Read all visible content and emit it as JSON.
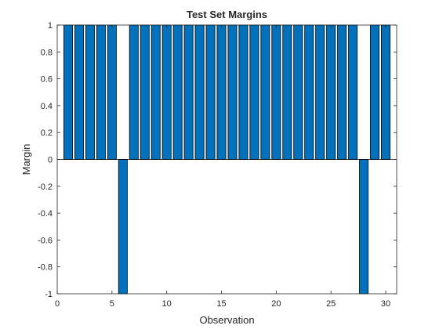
{
  "chart_data": {
    "type": "bar",
    "title": "Test Set Margins",
    "xlabel": "Observation",
    "ylabel": "Margin",
    "xlim": [
      0,
      31
    ],
    "ylim": [
      -1,
      1
    ],
    "xticks": [
      "0",
      "5",
      "10",
      "15",
      "20",
      "25",
      "30"
    ],
    "yticks": [
      "1",
      "0.8",
      "0.6",
      "0.4",
      "0.2",
      "0",
      "-0.2",
      "-0.4",
      "-0.6",
      "-0.8",
      "-1"
    ],
    "x": [
      1,
      2,
      3,
      4,
      5,
      6,
      7,
      8,
      9,
      10,
      11,
      12,
      13,
      14,
      15,
      16,
      17,
      18,
      19,
      20,
      21,
      22,
      23,
      24,
      25,
      26,
      27,
      28,
      29,
      30
    ],
    "values": [
      1,
      1,
      1,
      1,
      1,
      -1,
      1,
      1,
      1,
      1,
      1,
      1,
      1,
      1,
      1,
      1,
      1,
      1,
      1,
      1,
      1,
      1,
      1,
      1,
      1,
      1,
      1,
      -1,
      1,
      1
    ],
    "bar_color": "#0072BD",
    "edge_color": "#000000",
    "grid": false,
    "box": true
  }
}
